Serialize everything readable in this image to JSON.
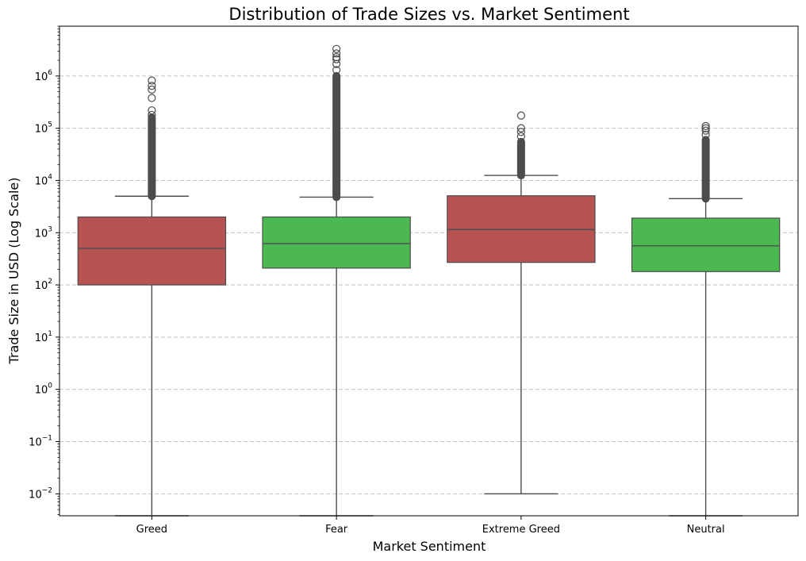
{
  "chart_data": {
    "type": "box",
    "title": "Distribution of Trade Sizes vs. Market Sentiment",
    "xlabel": "Market Sentiment",
    "ylabel": "Trade Size in USD (Log Scale)",
    "yscale": "log",
    "ylim": [
      0.0038,
      9000000
    ],
    "yticks": [
      {
        "base": "10",
        "exp": "−2",
        "value": 0.01
      },
      {
        "base": "10",
        "exp": "−1",
        "value": 0.1
      },
      {
        "base": "10",
        "exp": "0",
        "value": 1
      },
      {
        "base": "10",
        "exp": "1",
        "value": 10
      },
      {
        "base": "10",
        "exp": "2",
        "value": 100
      },
      {
        "base": "10",
        "exp": "3",
        "value": 1000
      },
      {
        "base": "10",
        "exp": "4",
        "value": 10000
      },
      {
        "base": "10",
        "exp": "5",
        "value": 100000
      },
      {
        "base": "10",
        "exp": "6",
        "value": 1000000
      }
    ],
    "grid": "y-dashed",
    "categories": [
      "Greed",
      "Fear",
      "Extreme Greed",
      "Neutral"
    ],
    "colors": [
      "#b85353",
      "#4bb852",
      "#b85353",
      "#4bb852"
    ],
    "boxes": [
      {
        "category": "Greed",
        "whislo": 0.0001,
        "q1": 100,
        "median": 500,
        "q3": 2000,
        "whishi": 5000,
        "fliers_dense_range": [
          5000,
          160000
        ],
        "fliers": [
          180000,
          220000,
          380000,
          550000,
          650000,
          820000
        ]
      },
      {
        "category": "Fear",
        "whislo": 0.0001,
        "q1": 210,
        "median": 620,
        "q3": 2000,
        "whishi": 4800,
        "fliers_dense_range": [
          4800,
          1000000
        ],
        "fliers": [
          1300000,
          1700000,
          2100000,
          2300000,
          2700000,
          3300000
        ]
      },
      {
        "category": "Extreme Greed",
        "whislo": 0.01,
        "q1": 270,
        "median": 1150,
        "q3": 5100,
        "whishi": 12500,
        "fliers_dense_range": [
          12500,
          55000
        ],
        "fliers": [
          70000,
          85000,
          100000,
          175000
        ]
      },
      {
        "category": "Neutral",
        "whislo": 0.0001,
        "q1": 180,
        "median": 560,
        "q3": 1900,
        "whishi": 4500,
        "fliers_dense_range": [
          4500,
          60000
        ],
        "fliers": [
          75000,
          90000,
          100000,
          110000
        ]
      }
    ]
  }
}
